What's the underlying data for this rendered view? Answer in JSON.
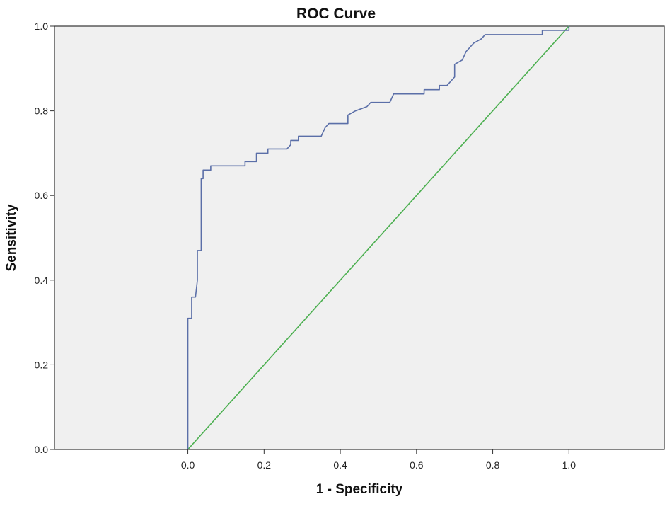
{
  "chart_data": {
    "type": "line",
    "title": "ROC Curve",
    "xlabel": "1 - Specificity",
    "ylabel": "Sensitivity",
    "xlim": [
      -0.35,
      1.25
    ],
    "ylim": [
      0,
      1
    ],
    "x_ticks": [
      0.0,
      0.2,
      0.4,
      0.6,
      0.8,
      1.0
    ],
    "y_ticks": [
      0.0,
      0.2,
      0.4,
      0.6,
      0.8,
      1.0
    ],
    "x_tick_labels": [
      "0.0",
      "0.2",
      "0.4",
      "0.6",
      "0.8",
      "1.0"
    ],
    "y_tick_labels": [
      "0.0",
      "0.2",
      "0.4",
      "0.6",
      "0.8",
      "1.0"
    ],
    "grid": false,
    "legend": "none",
    "background": "#f0f0f0",
    "series": [
      {
        "color": "#5b6fa8",
        "step": true,
        "points": [
          [
            0.0,
            0.0
          ],
          [
            0.0,
            0.31
          ],
          [
            0.01,
            0.31
          ],
          [
            0.01,
            0.36
          ],
          [
            0.02,
            0.36
          ],
          [
            0.025,
            0.4
          ],
          [
            0.025,
            0.47
          ],
          [
            0.035,
            0.47
          ],
          [
            0.035,
            0.64
          ],
          [
            0.04,
            0.64
          ],
          [
            0.04,
            0.66
          ],
          [
            0.06,
            0.66
          ],
          [
            0.06,
            0.67
          ],
          [
            0.15,
            0.67
          ],
          [
            0.15,
            0.68
          ],
          [
            0.18,
            0.68
          ],
          [
            0.18,
            0.7
          ],
          [
            0.21,
            0.7
          ],
          [
            0.21,
            0.71
          ],
          [
            0.26,
            0.71
          ],
          [
            0.27,
            0.72
          ],
          [
            0.27,
            0.73
          ],
          [
            0.29,
            0.73
          ],
          [
            0.29,
            0.74
          ],
          [
            0.35,
            0.74
          ],
          [
            0.36,
            0.76
          ],
          [
            0.37,
            0.77
          ],
          [
            0.42,
            0.77
          ],
          [
            0.42,
            0.79
          ],
          [
            0.44,
            0.8
          ],
          [
            0.47,
            0.81
          ],
          [
            0.48,
            0.82
          ],
          [
            0.53,
            0.82
          ],
          [
            0.54,
            0.84
          ],
          [
            0.62,
            0.84
          ],
          [
            0.62,
            0.85
          ],
          [
            0.66,
            0.85
          ],
          [
            0.66,
            0.86
          ],
          [
            0.68,
            0.86
          ],
          [
            0.69,
            0.87
          ],
          [
            0.7,
            0.88
          ],
          [
            0.7,
            0.91
          ],
          [
            0.72,
            0.92
          ],
          [
            0.73,
            0.94
          ],
          [
            0.75,
            0.96
          ],
          [
            0.77,
            0.97
          ],
          [
            0.78,
            0.98
          ],
          [
            0.93,
            0.98
          ],
          [
            0.93,
            0.99
          ],
          [
            1.0,
            0.99
          ],
          [
            1.0,
            1.0
          ]
        ]
      },
      {
        "color": "#4caf50",
        "step": false,
        "points": [
          [
            0.0,
            0.0
          ],
          [
            1.0,
            1.0
          ]
        ]
      }
    ]
  }
}
